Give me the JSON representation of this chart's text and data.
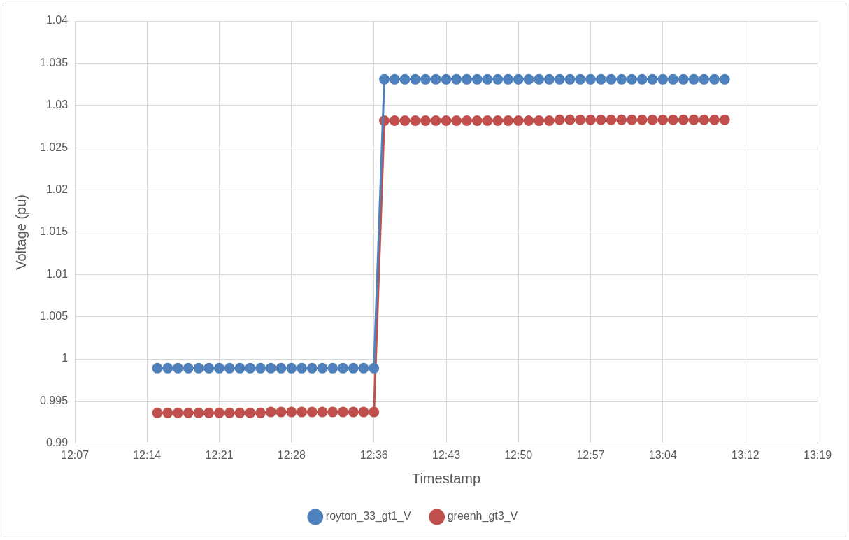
{
  "chart_data": {
    "type": "line",
    "xlabel": "Timestamp",
    "ylabel": "Voltage (pu)",
    "xlim": [
      12.1167,
      13.3167
    ],
    "xticks": [
      {
        "value": 12.1167,
        "label": "12:07"
      },
      {
        "value": 12.2333,
        "label": "12:14"
      },
      {
        "value": 12.35,
        "label": "12:21"
      },
      {
        "value": 12.4667,
        "label": "12:28"
      },
      {
        "value": 12.6,
        "label": "12:36"
      },
      {
        "value": 12.7167,
        "label": "12:43"
      },
      {
        "value": 12.8333,
        "label": "12:50"
      },
      {
        "value": 12.95,
        "label": "12:57"
      },
      {
        "value": 13.0667,
        "label": "13:04"
      },
      {
        "value": 13.2,
        "label": "13:12"
      },
      {
        "value": 13.3167,
        "label": "13:19"
      }
    ],
    "ylim": [
      0.99,
      1.04
    ],
    "yticks": [
      0.99,
      0.995,
      1,
      1.005,
      1.01,
      1.015,
      1.02,
      1.025,
      1.03,
      1.035,
      1.04
    ],
    "grid": true,
    "legend": "bottom",
    "marker": "circle",
    "line_style": "solid",
    "x": [
      12.25,
      12.2667,
      12.2833,
      12.3,
      12.3167,
      12.3333,
      12.35,
      12.3667,
      12.3833,
      12.4,
      12.4167,
      12.4333,
      12.45,
      12.4667,
      12.4833,
      12.5,
      12.5167,
      12.5333,
      12.55,
      12.5667,
      12.5833,
      12.6,
      12.6167,
      12.6333,
      12.65,
      12.6667,
      12.6833,
      12.7,
      12.7167,
      12.7333,
      12.75,
      12.7667,
      12.7833,
      12.8,
      12.8167,
      12.8333,
      12.85,
      12.8667,
      12.8833,
      12.9,
      12.9167,
      12.9333,
      12.95,
      12.9667,
      12.9833,
      13,
      13.0167,
      13.0333,
      13.05,
      13.0667,
      13.0833,
      13.1,
      13.1167,
      13.1333,
      13.15,
      13.1667
    ],
    "series": [
      {
        "name": "royton_33_gt1_V",
        "color": "#4f81bd",
        "values": [
          0.9989,
          0.9989,
          0.9989,
          0.9989,
          0.9989,
          0.9989,
          0.9989,
          0.9989,
          0.9989,
          0.9989,
          0.9989,
          0.9989,
          0.9989,
          0.9989,
          0.9989,
          0.9989,
          0.9989,
          0.9989,
          0.9989,
          0.9989,
          0.9989,
          0.9989,
          1.0331,
          1.0331,
          1.0331,
          1.0331,
          1.0331,
          1.0331,
          1.0331,
          1.0331,
          1.0331,
          1.0331,
          1.0331,
          1.0331,
          1.0331,
          1.0331,
          1.0331,
          1.0331,
          1.0331,
          1.0331,
          1.0331,
          1.0331,
          1.0331,
          1.0331,
          1.0331,
          1.0331,
          1.0331,
          1.0331,
          1.0331,
          1.0331,
          1.0331,
          1.0331,
          1.0331,
          1.0331,
          1.0331,
          1.0331
        ]
      },
      {
        "name": "greenh_gt3_V",
        "color": "#c0504d",
        "values": [
          0.9936,
          0.9936,
          0.9936,
          0.9936,
          0.9936,
          0.9936,
          0.9936,
          0.9936,
          0.9936,
          0.9936,
          0.9936,
          0.9937,
          0.9937,
          0.9937,
          0.9937,
          0.9937,
          0.9937,
          0.9937,
          0.9937,
          0.9937,
          0.9937,
          0.9937,
          1.0282,
          1.0282,
          1.0282,
          1.0282,
          1.0282,
          1.0282,
          1.0282,
          1.0282,
          1.0282,
          1.0282,
          1.0282,
          1.0282,
          1.0282,
          1.0282,
          1.0282,
          1.0282,
          1.0282,
          1.0283,
          1.0283,
          1.0283,
          1.0283,
          1.0283,
          1.0283,
          1.0283,
          1.0283,
          1.0283,
          1.0283,
          1.0283,
          1.0283,
          1.0283,
          1.0283,
          1.0283,
          1.0283,
          1.0283
        ]
      }
    ]
  }
}
